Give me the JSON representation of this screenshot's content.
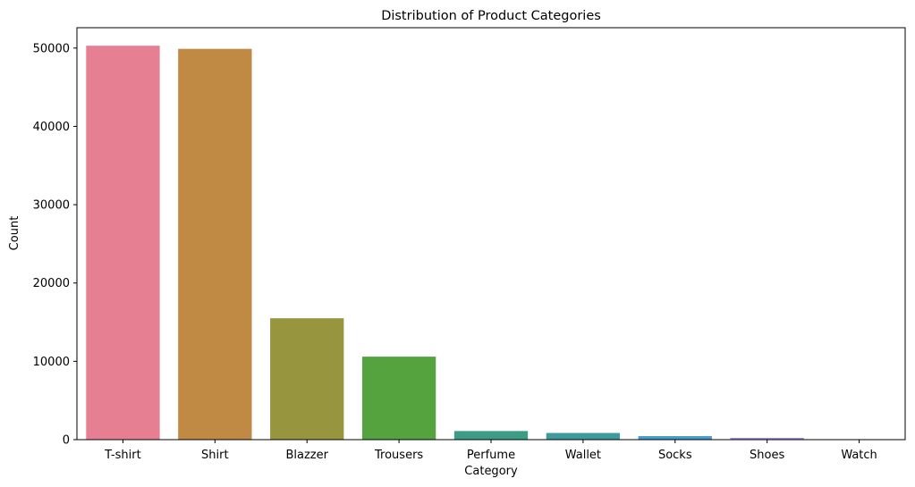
{
  "chart_data": {
    "type": "bar",
    "title": "Distribution of Product Categories",
    "xlabel": "Category",
    "ylabel": "Count",
    "categories": [
      "T-shirt",
      "Shirt",
      "Blazzer",
      "Trousers",
      "Perfume",
      "Wallet",
      "Socks",
      "Shoes",
      "Watch"
    ],
    "values": [
      50300,
      49900,
      15500,
      10600,
      1100,
      850,
      450,
      230,
      60
    ],
    "colors": [
      "#e77f92",
      "#c08a45",
      "#97963f",
      "#55a33f",
      "#3d9c86",
      "#3e9a9d",
      "#469bca",
      "#a78bd8",
      "#e06ec8"
    ],
    "ylim": [
      0,
      52600
    ],
    "yticks": [
      0,
      10000,
      20000,
      30000,
      40000,
      50000
    ],
    "grid": false,
    "legend": false
  }
}
